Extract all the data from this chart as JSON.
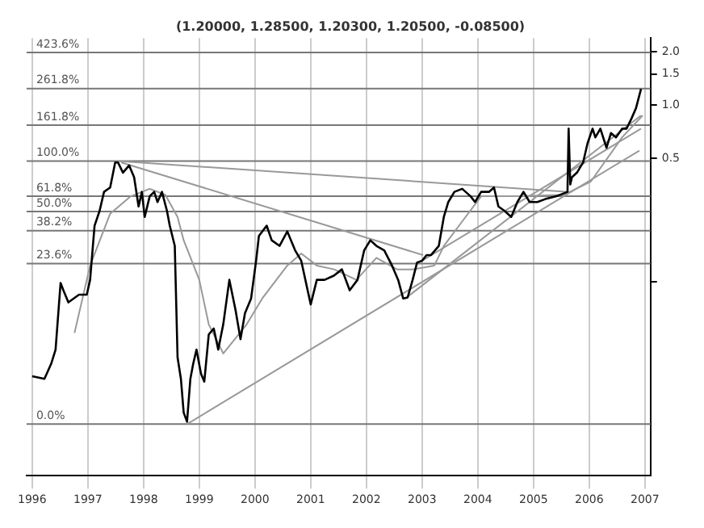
{
  "chart_data": {
    "type": "line",
    "title": "(1.20000, 1.28500, 1.20300, 1.20500, -0.08500)",
    "xlim": [
      1995.9,
      2007.1
    ],
    "xticks": [
      1996,
      1997,
      1998,
      1999,
      2000,
      2001,
      2002,
      2003,
      2004,
      2005,
      2006,
      2007
    ],
    "ylim": [
      0.0079,
      2.4
    ],
    "yticks": [
      {
        "value": 0.1,
        "label": null
      },
      {
        "value": 0.5,
        "label": "0.5"
      },
      {
        "value": 1,
        "label": "1.0"
      },
      {
        "value": 1.5,
        "label": "1.5"
      },
      {
        "value": 2,
        "label": "2.0"
      }
    ],
    "log": "y",
    "grid": "x",
    "legend": false,
    "marker": "none",
    "line_style": "solid",
    "series": [
      {
        "color": "#000000",
        "x": [
          1996.0,
          1996.22,
          1996.34,
          1996.42,
          1996.51,
          1996.56,
          1996.65,
          1996.84,
          1996.98,
          1997.04,
          1997.12,
          1997.21,
          1997.29,
          1997.4,
          1997.49,
          1997.54,
          1997.63,
          1997.74,
          1997.83,
          1997.91,
          1997.97,
          1998.02,
          1998.11,
          1998.19,
          1998.25,
          1998.33,
          1998.42,
          1998.47,
          1998.56,
          1998.61,
          1998.67,
          1998.72,
          1998.78,
          1998.84,
          1998.89,
          1998.95,
          1999.03,
          1999.09,
          1999.17,
          1999.26,
          1999.34,
          1999.43,
          1999.54,
          1999.65,
          1999.74,
          1999.82,
          1999.93,
          2000.02,
          2000.07,
          2000.21,
          2000.3,
          2000.44,
          2000.58,
          2000.72,
          2000.83,
          2001.0,
          2001.11,
          2001.25,
          2001.42,
          2001.56,
          2001.7,
          2001.84,
          2001.96,
          2002.07,
          2002.18,
          2002.32,
          2002.46,
          2002.57,
          2002.66,
          2002.74,
          2002.83,
          2002.91,
          2003.0,
          2003.08,
          2003.16,
          2003.3,
          2003.39,
          2003.47,
          2003.58,
          2003.72,
          2003.87,
          2003.95,
          2004.06,
          2004.2,
          2004.29,
          2004.37,
          2004.48,
          2004.6,
          2004.71,
          2004.82,
          2004.93,
          2005.07,
          2005.21,
          2005.41,
          2005.61,
          2005.63,
          2005.66,
          2005.69,
          2005.78,
          2005.89,
          2005.97,
          2006.06,
          2006.11,
          2006.2,
          2006.31,
          2006.39,
          2006.48,
          2006.59,
          2006.67,
          2006.76,
          2006.84,
          2006.93
        ],
        "values": [
          0.029,
          0.028,
          0.034,
          0.041,
          0.098,
          0.089,
          0.076,
          0.084,
          0.084,
          0.102,
          0.207,
          0.251,
          0.322,
          0.341,
          0.473,
          0.473,
          0.414,
          0.455,
          0.39,
          0.266,
          0.322,
          0.232,
          0.304,
          0.322,
          0.282,
          0.322,
          0.251,
          0.207,
          0.159,
          0.037,
          0.028,
          0.018,
          0.016,
          0.028,
          0.034,
          0.041,
          0.03,
          0.027,
          0.05,
          0.054,
          0.041,
          0.057,
          0.102,
          0.069,
          0.047,
          0.066,
          0.08,
          0.131,
          0.181,
          0.207,
          0.171,
          0.159,
          0.192,
          0.15,
          0.131,
          0.074,
          0.102,
          0.102,
          0.108,
          0.117,
          0.089,
          0.102,
          0.15,
          0.171,
          0.159,
          0.15,
          0.123,
          0.102,
          0.08,
          0.081,
          0.102,
          0.128,
          0.131,
          0.141,
          0.141,
          0.159,
          0.232,
          0.282,
          0.322,
          0.335,
          0.304,
          0.282,
          0.322,
          0.322,
          0.341,
          0.266,
          0.251,
          0.232,
          0.282,
          0.322,
          0.282,
          0.282,
          0.293,
          0.304,
          0.322,
          0.735,
          0.355,
          0.39,
          0.414,
          0.473,
          0.607,
          0.735,
          0.656,
          0.735,
          0.573,
          0.694,
          0.656,
          0.735,
          0.735,
          0.841,
          0.962,
          1.235
        ]
      },
      {
        "color": "#999999",
        "x": [
          1996.76,
          1997.04,
          1997.4,
          1997.77,
          1998.11,
          1998.39,
          1998.61,
          1998.72,
          1999.0,
          1999.17,
          1999.43,
          1999.85,
          2000.13,
          2000.58,
          2000.83,
          2001.11,
          2001.42,
          2001.82,
          2002.18,
          2002.55,
          2002.83,
          2003.22,
          2003.39,
          2003.78,
          2004.06,
          2004.71,
          2005.55,
          2006.03,
          2006.59,
          2006.96
        ],
        "values": [
          0.051,
          0.123,
          0.242,
          0.304,
          0.335,
          0.31,
          0.232,
          0.171,
          0.102,
          0.057,
          0.039,
          0.057,
          0.08,
          0.123,
          0.144,
          0.123,
          0.117,
          0.102,
          0.136,
          0.117,
          0.117,
          0.123,
          0.159,
          0.232,
          0.304,
          0.304,
          0.31,
          0.369,
          0.656,
          0.874
        ]
      },
      {
        "color": "#999999",
        "x": [
          1997.54,
          2005.63
        ],
        "values": [
          0.482,
          0.322
        ]
      },
      {
        "color": "#999999",
        "x": [
          1997.6,
          2003.02
        ],
        "values": [
          0.473,
          0.141
        ]
      },
      {
        "color": "#999999",
        "x": [
          1998.78,
          2006.9
        ],
        "values": [
          0.0155,
          0.552
        ]
      },
      {
        "color": "#999999",
        "x": [
          2002.7,
          2006.93
        ],
        "values": [
          0.08,
          0.874
        ]
      },
      {
        "color": "#999999",
        "x": [
          2003.0,
          2006.93
        ],
        "values": [
          0.131,
          0.735
        ]
      }
    ],
    "ref_lines": [
      {
        "axis": "y",
        "value": 0.0155
      },
      {
        "axis": "y",
        "value": 0.126
      },
      {
        "axis": "y",
        "value": 0.194
      },
      {
        "axis": "y",
        "value": 0.249
      },
      {
        "axis": "y",
        "value": 0.304
      },
      {
        "axis": "y",
        "value": 0.482
      },
      {
        "axis": "y",
        "value": 0.77
      },
      {
        "axis": "y",
        "value": 1.24
      },
      {
        "axis": "y",
        "value": 1.99
      }
    ],
    "annotations": [
      {
        "text": "0.0%",
        "y": 0.0155
      },
      {
        "text": "23.6%",
        "y": 0.126
      },
      {
        "text": "38.2%",
        "y": 0.194
      },
      {
        "text": "50.0%",
        "y": 0.249
      },
      {
        "text": "61.8%",
        "y": 0.304
      },
      {
        "text": "100.0%",
        "y": 0.482
      },
      {
        "text": "161.8%",
        "y": 0.77
      },
      {
        "text": "261.8%",
        "y": 1.24
      },
      {
        "text": "423.6%",
        "y": 1.99
      }
    ]
  }
}
